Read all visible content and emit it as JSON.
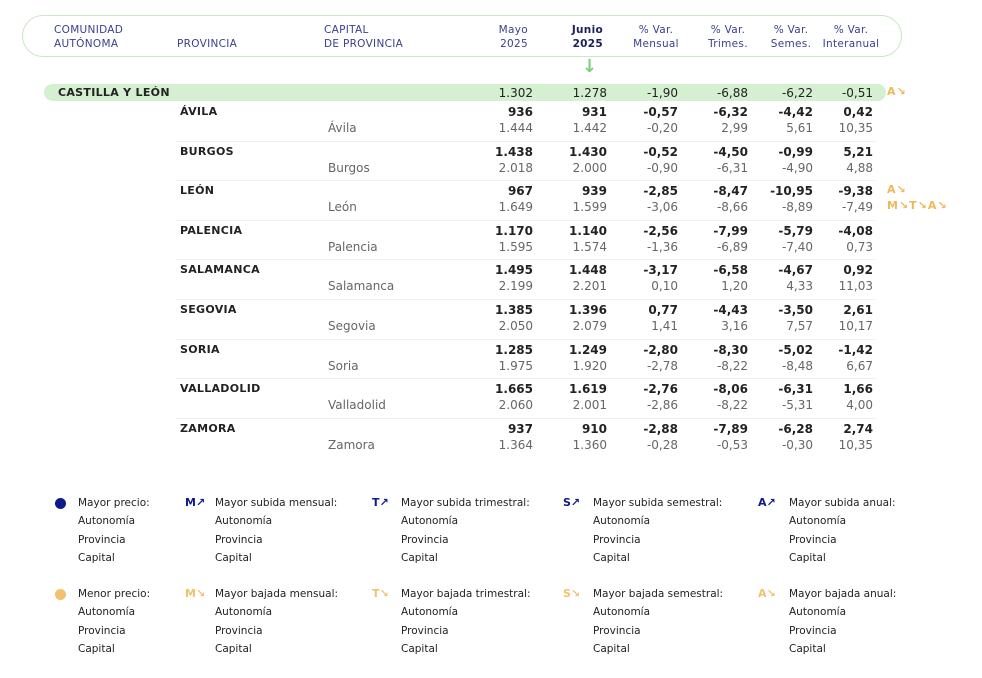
{
  "header": {
    "ccaa": [
      "COMUNIDAD",
      "AUTÓNOMA"
    ],
    "provincia": "PROVINCIA",
    "capital": [
      "CAPITAL",
      "DE PROVINCIA"
    ],
    "mayo": [
      "Mayo",
      "2025"
    ],
    "junio": [
      "Junio",
      "2025"
    ],
    "mensual": [
      "% Var.",
      "Mensual"
    ],
    "trimes": [
      "% Var.",
      "Trimes."
    ],
    "semes": [
      "% Var.",
      "Semes."
    ],
    "interanual": [
      "% Var.",
      "Interanual"
    ]
  },
  "arrow_icon": "down-arrow-icon",
  "ccaa_row": {
    "name": "CASTILLA Y LEÓN",
    "values": [
      "1.302",
      "1.278",
      "-1,90",
      "-6,88",
      "-6,22",
      "-0,51"
    ],
    "badge": "A↘"
  },
  "provinces": [
    {
      "name": "ÁVILA",
      "values": [
        "936",
        "931",
        "-0,57",
        "-6,32",
        "-4,42",
        "0,42"
      ],
      "capital": "Ávila",
      "cap_values": [
        "1.444",
        "1.442",
        "-0,20",
        "2,99",
        "5,61",
        "10,35"
      ]
    },
    {
      "name": "BURGOS",
      "values": [
        "1.438",
        "1.430",
        "-0,52",
        "-4,50",
        "-0,99",
        "5,21"
      ],
      "capital": "Burgos",
      "cap_values": [
        "2.018",
        "2.000",
        "-0,90",
        "-6,31",
        "-4,90",
        "4,88"
      ]
    },
    {
      "name": "LEÓN",
      "values": [
        "967",
        "939",
        "-2,85",
        "-8,47",
        "-10,95",
        "-9,38"
      ],
      "capital": "León",
      "cap_values": [
        "1.649",
        "1.599",
        "-3,06",
        "-8,66",
        "-8,89",
        "-7,49"
      ],
      "badge": "A↘",
      "cap_badge": "M↘T↘A↘"
    },
    {
      "name": "PALENCIA",
      "values": [
        "1.170",
        "1.140",
        "-2,56",
        "-7,99",
        "-5,79",
        "-4,08"
      ],
      "capital": "Palencia",
      "cap_values": [
        "1.595",
        "1.574",
        "-1,36",
        "-6,89",
        "-7,40",
        "0,73"
      ]
    },
    {
      "name": "SALAMANCA",
      "values": [
        "1.495",
        "1.448",
        "-3,17",
        "-6,58",
        "-4,67",
        "0,92"
      ],
      "capital": "Salamanca",
      "cap_values": [
        "2.199",
        "2.201",
        "0,10",
        "1,20",
        "4,33",
        "11,03"
      ]
    },
    {
      "name": "SEGOVIA",
      "values": [
        "1.385",
        "1.396",
        "0,77",
        "-4,43",
        "-3,50",
        "2,61"
      ],
      "capital": "Segovia",
      "cap_values": [
        "2.050",
        "2.079",
        "1,41",
        "3,16",
        "7,57",
        "10,17"
      ]
    },
    {
      "name": "SORIA",
      "values": [
        "1.285",
        "1.249",
        "-2,80",
        "-8,30",
        "-5,02",
        "-1,42"
      ],
      "capital": "Soria",
      "cap_values": [
        "1.975",
        "1.920",
        "-2,78",
        "-8,22",
        "-8,48",
        "6,67"
      ]
    },
    {
      "name": "VALLADOLID",
      "values": [
        "1.665",
        "1.619",
        "-2,76",
        "-8,06",
        "-6,31",
        "1,66"
      ],
      "capital": "Valladolid",
      "cap_values": [
        "2.060",
        "2.001",
        "-2,86",
        "-8,22",
        "-5,31",
        "4,00"
      ]
    },
    {
      "name": "ZAMORA",
      "values": [
        "937",
        "910",
        "-2,88",
        "-7,89",
        "-6,28",
        "2,74"
      ],
      "capital": "Zamora",
      "cap_values": [
        "1.364",
        "1.360",
        "-0,28",
        "-0,53",
        "-0,30",
        "10,35"
      ]
    }
  ],
  "legend": {
    "items_sub": [
      "Autonomía",
      "Provincia",
      "Capital"
    ],
    "up": [
      {
        "badge": "●",
        "title": "Mayor precio:"
      },
      {
        "badge": "M↗",
        "title": "Mayor subida mensual:"
      },
      {
        "badge": "T↗",
        "title": "Mayor subida trimestral:"
      },
      {
        "badge": "S↗",
        "title": "Mayor subida semestral:"
      },
      {
        "badge": "A↗",
        "title": "Mayor subida anual:"
      }
    ],
    "down": [
      {
        "badge": "●",
        "title": "Menor precio:"
      },
      {
        "badge": "M↘",
        "title": "Mayor bajada mensual:"
      },
      {
        "badge": "T↘",
        "title": "Mayor bajada trimestral:"
      },
      {
        "badge": "S↘",
        "title": "Mayor bajada semestral:"
      },
      {
        "badge": "A↘",
        "title": "Mayor bajada anual:"
      }
    ]
  },
  "colors": {
    "high": "#0d1a8a",
    "low": "#f2c16e",
    "accent_green": "#d5efd1",
    "header_text": "#3a3f8f"
  }
}
